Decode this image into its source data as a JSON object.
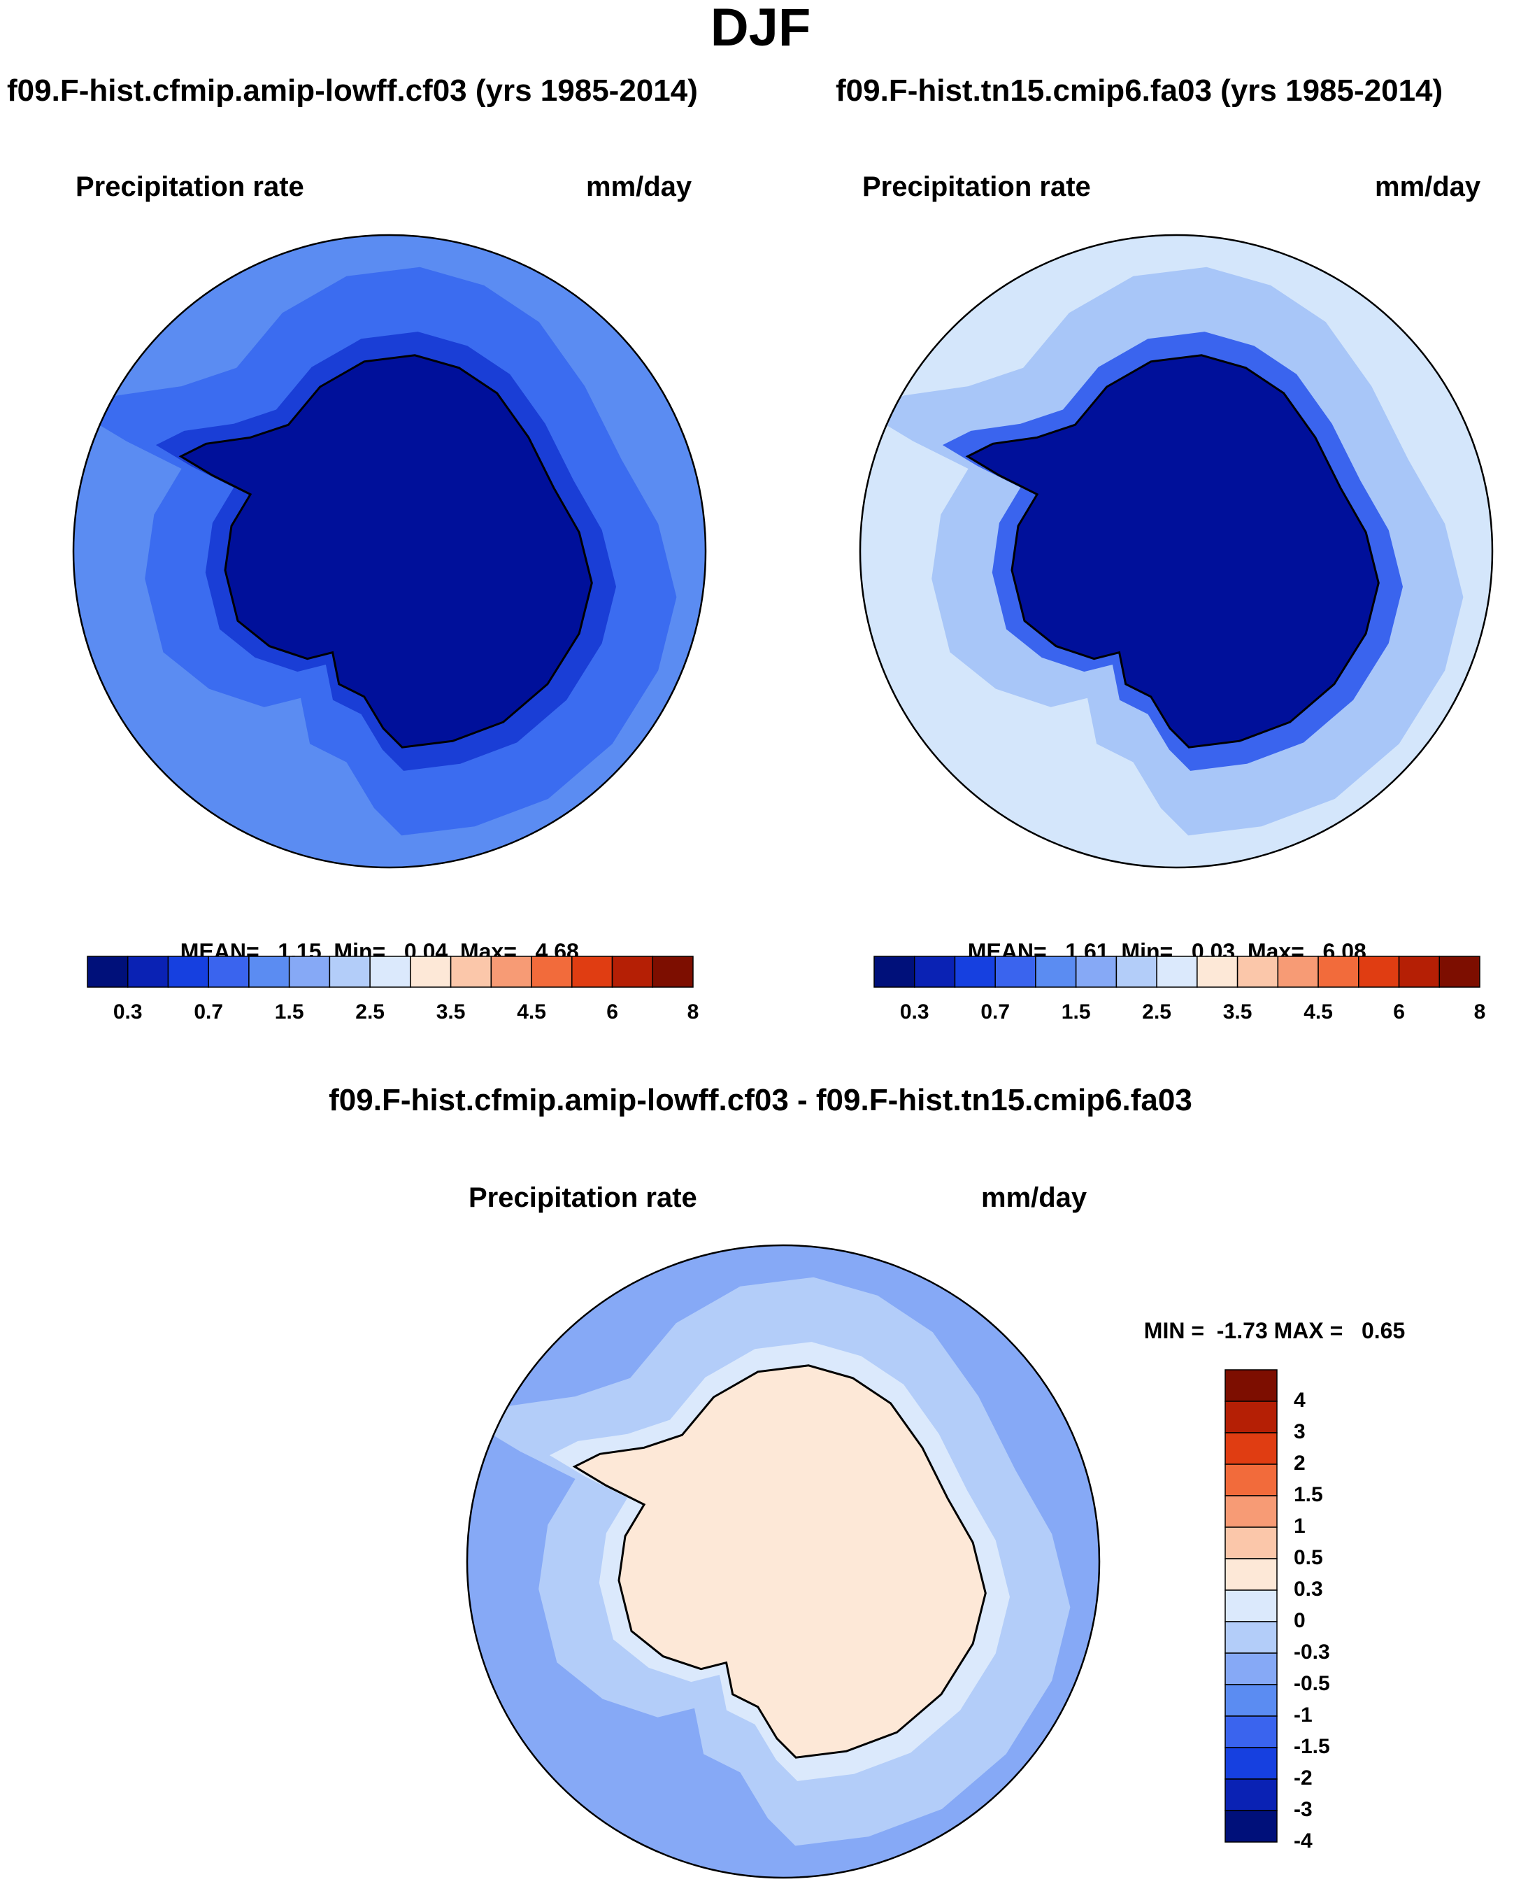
{
  "page": {
    "title": "DJF"
  },
  "panels": [
    {
      "id": "left",
      "case_title": "f09.F-hist.cfmip.amip-lowff.cf03 (yrs 1985-2014)",
      "variable": "Precipitation rate",
      "units": "mm/day",
      "stats": {
        "mean_label": "MEAN=",
        "mean": "1.15",
        "min_label": "Min=",
        "min": "0.04",
        "max_label": "Max=",
        "max": "4.68"
      },
      "map_fill": {
        "ocean_outer": "#5b8cf2",
        "ocean_inner": "#3b6cf0",
        "antarctic": "#00109a",
        "coast": "#1a3ed6"
      }
    },
    {
      "id": "right",
      "case_title": "f09.F-hist.tn15.cmip6.fa03 (yrs 1985-2014)",
      "variable": "Precipitation rate",
      "units": "mm/day",
      "stats": {
        "mean_label": "MEAN=",
        "mean": "1.61",
        "min_label": "Min=",
        "min": "0.03",
        "max_label": "Max=",
        "max": "6.08"
      },
      "map_fill": {
        "ocean_outer": "#d4e6fb",
        "ocean_inner": "#a8c6f8",
        "antarctic": "#00109a",
        "coast": "#3a64ee"
      }
    }
  ],
  "colorbar_abs": {
    "colors": [
      "#00107a",
      "#0a22b4",
      "#1640e0",
      "#3a64ee",
      "#5b8cf2",
      "#86a9f6",
      "#b3cdf9",
      "#dbe9fc",
      "#fde8d7",
      "#fbc7aa",
      "#f79b75",
      "#f26b3b",
      "#e03d12",
      "#b51f05",
      "#7d0e00"
    ],
    "ticks": [
      "0.3",
      "0.7",
      "1.5",
      "2.5",
      "3.5",
      "4.5",
      "6",
      "8"
    ]
  },
  "diff": {
    "title": "f09.F-hist.cfmip.amip-lowff.cf03 - f09.F-hist.tn15.cmip6.fa03",
    "variable": "Precipitation rate",
    "units": "mm/day",
    "stats": {
      "min_label": "MIN =",
      "min": "-1.73",
      "max_label": "MAX =",
      "max": "0.65"
    },
    "colorbar": {
      "colors": [
        "#7d0e00",
        "#b51f05",
        "#e03d12",
        "#f26b3b",
        "#f79b75",
        "#fbc7aa",
        "#fde8d7",
        "#dbe9fc",
        "#b3cdf9",
        "#86a9f6",
        "#5b8cf2",
        "#3a64ee",
        "#1640e0",
        "#0a22b4",
        "#00107a"
      ],
      "ticks": [
        "4",
        "3",
        "2",
        "1.5",
        "1",
        "0.5",
        "0.3",
        "0",
        "-0.3",
        "-0.5",
        "-1",
        "-1.5",
        "-2",
        "-3",
        "-4"
      ]
    },
    "map_fill": {
      "ocean_outer": "#86a9f6",
      "ocean_inner": "#b3cdf9",
      "antarctic": "#fde8d7",
      "coast": "#dbe9fc"
    }
  }
}
